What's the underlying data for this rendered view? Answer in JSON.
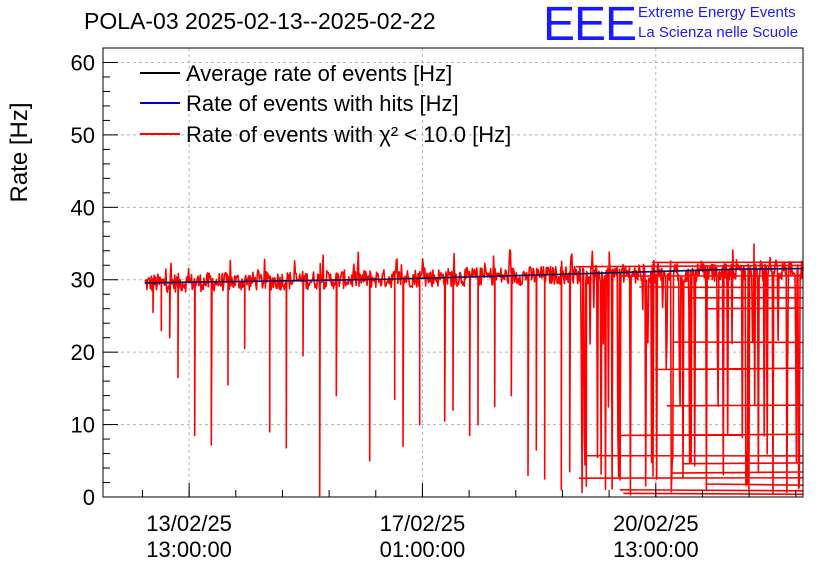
{
  "header": {
    "title": "POLA-03 2025-02-13--2025-02-22",
    "logo_mark": "EEE",
    "logo_line1": "Extreme Energy Events",
    "logo_line2": "La Scienza nelle Scuole"
  },
  "chart_data": {
    "type": "line",
    "title": "POLA-03 2025-02-13--2025-02-22",
    "xlabel": "",
    "ylabel": "Rate [Hz]",
    "ylim": [
      0,
      62
    ],
    "yticks": [
      0,
      10,
      20,
      30,
      40,
      50,
      60
    ],
    "xlim": [
      "2025-02-12 06:00",
      "2025-02-22 18:00"
    ],
    "xticks": [
      {
        "t": "2025-02-13 13:00",
        "label1": "13/02/25",
        "label2": "13:00:00"
      },
      {
        "t": "2025-02-17 01:00",
        "label1": "17/02/25",
        "label2": "01:00:00"
      },
      {
        "t": "2025-02-20 13:00",
        "label1": "20/02/25",
        "label2": "13:00:00"
      }
    ],
    "grid": true,
    "legend_position": "top-left",
    "series": [
      {
        "name": "Average rate of events [Hz]",
        "color": "#000000",
        "points": [
          [
            "2025-02-12 21:00",
            29.6
          ],
          [
            "2025-02-13 12:00",
            29.7
          ],
          [
            "2025-02-14 06:00",
            29.8
          ],
          [
            "2025-02-15 00:00",
            29.9
          ],
          [
            "2025-02-15 18:00",
            30.0
          ],
          [
            "2025-02-16 12:00",
            30.1
          ],
          [
            "2025-02-17 06:00",
            30.3
          ],
          [
            "2025-02-18 00:00",
            30.5
          ],
          [
            "2025-02-18 18:00",
            30.7
          ],
          [
            "2025-02-19 12:00",
            30.9
          ],
          [
            "2025-02-20 06:00",
            31.1
          ],
          [
            "2025-02-21 00:00",
            31.3
          ],
          [
            "2025-02-21 18:00",
            31.5
          ],
          [
            "2025-02-22 18:00",
            31.6
          ]
        ]
      },
      {
        "name": "Rate of events with hits [Hz]",
        "color": "#0000cc",
        "points": [
          [
            "2025-02-12 21:00",
            29.5
          ],
          [
            "2025-02-14 06:00",
            29.7
          ],
          [
            "2025-02-15 18:00",
            29.9
          ],
          [
            "2025-02-17 06:00",
            30.2
          ],
          [
            "2025-02-18 18:00",
            30.6
          ],
          [
            "2025-02-20 06:00",
            31.0
          ],
          [
            "2025-02-21 18:00",
            31.4
          ],
          [
            "2025-02-22 18:00",
            31.5
          ]
        ]
      },
      {
        "name": "Rate of events with χ² < 10.0 [Hz]",
        "color": "#ff0000",
        "baseline_start": 29.5,
        "baseline_end": 31.3,
        "noise": 1.3,
        "range": [
          "2025-02-12 21:00",
          "2025-02-22 18:00"
        ],
        "dips": [
          [
            "2025-02-13 00:00",
            25.5
          ],
          [
            "2025-02-13 03:00",
            23.0
          ],
          [
            "2025-02-13 06:00",
            22.0
          ],
          [
            "2025-02-13 09:00",
            16.5
          ],
          [
            "2025-02-13 15:00",
            8.5
          ],
          [
            "2025-02-13 21:00",
            7.2
          ],
          [
            "2025-02-14 03:00",
            15.5
          ],
          [
            "2025-02-14 09:00",
            20.5
          ],
          [
            "2025-02-14 18:00",
            9.0
          ],
          [
            "2025-02-15 00:00",
            6.8
          ],
          [
            "2025-02-15 06:00",
            19.5
          ],
          [
            "2025-02-15 12:00",
            0.2
          ],
          [
            "2025-02-15 18:00",
            14.0
          ],
          [
            "2025-02-16 06:00",
            5.0
          ],
          [
            "2025-02-16 15:00",
            13.5
          ],
          [
            "2025-02-16 18:00",
            7.0
          ],
          [
            "2025-02-17 00:00",
            10.0
          ],
          [
            "2025-02-17 09:00",
            10.5
          ],
          [
            "2025-02-17 12:00",
            12.0
          ],
          [
            "2025-02-17 18:00",
            8.5
          ],
          [
            "2025-02-17 21:00",
            10.0
          ],
          [
            "2025-02-18 03:00",
            12.5
          ],
          [
            "2025-02-18 09:00",
            14.0
          ],
          [
            "2025-02-18 15:00",
            3.0
          ],
          [
            "2025-02-18 18:00",
            6.5
          ],
          [
            "2025-02-18 21:00",
            2.5
          ],
          [
            "2025-02-19 03:00",
            1.0
          ],
          [
            "2025-02-19 06:00",
            3.5
          ],
          [
            "2025-02-19 12:00",
            1.5
          ]
        ],
        "dense_region": [
          "2025-02-19 06:00",
          "2025-02-22 18:00"
        ],
        "low_levels": [
          0.5,
          1.0,
          1.8,
          2.6,
          3.3,
          4.6,
          5.7,
          8.5,
          12.6,
          17.6,
          21.4,
          26.0
        ]
      }
    ]
  }
}
